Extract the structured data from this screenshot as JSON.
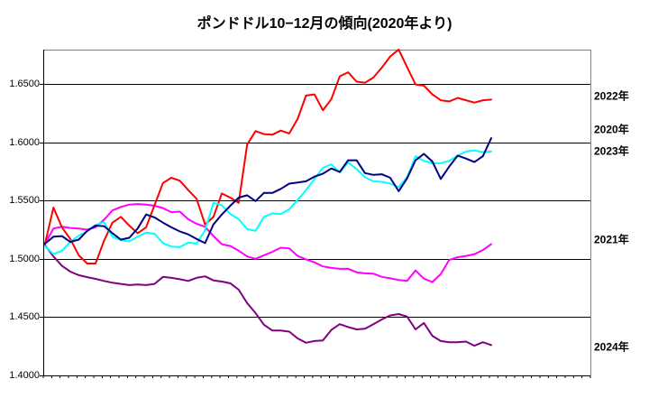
{
  "chart_data": {
    "type": "line",
    "title": "ポンドドル10−12月の傾向(2020年より)",
    "xlabel": "",
    "ylabel": "",
    "ylim": [
      1.4,
      1.68
    ],
    "grid": true,
    "legend_position": "right-of-plot",
    "y_ticks": [
      {
        "label": "1.6500",
        "value": 1.65
      },
      {
        "label": "1.6000",
        "value": 1.6
      },
      {
        "label": "1.5500",
        "value": 1.55
      },
      {
        "label": "1.5000",
        "value": 1.5
      },
      {
        "label": "1.4500",
        "value": 1.45
      },
      {
        "label": "1.4000",
        "value": 1.4
      }
    ],
    "x_axis": {
      "tick_intervals": 65,
      "labels_visible": false
    },
    "series": [
      {
        "name": "2022年",
        "color": "#FF0000",
        "z": 3,
        "label_value": 1.64,
        "values": [
          1.513,
          1.544,
          1.527,
          1.517,
          1.503,
          1.496,
          1.496,
          1.5155,
          1.531,
          1.536,
          1.5285,
          1.522,
          1.527,
          1.546,
          1.565,
          1.5695,
          1.567,
          1.559,
          1.5515,
          1.5295,
          1.536,
          1.556,
          1.5525,
          1.548,
          1.598,
          1.6095,
          1.607,
          1.6065,
          1.61,
          1.6075,
          1.62,
          1.64,
          1.641,
          1.6275,
          1.637,
          1.6565,
          1.66,
          1.652,
          1.651,
          1.6555,
          1.664,
          1.6735,
          1.6795,
          1.6645,
          1.6495,
          1.6485,
          1.641,
          1.636,
          1.635,
          1.638,
          1.636,
          1.634,
          1.636,
          1.6365
        ]
      },
      {
        "name": "2020年",
        "color": "#000080",
        "z": 5,
        "label_value": 1.6115,
        "values": [
          1.513,
          1.519,
          1.5195,
          1.5145,
          1.5165,
          1.524,
          1.5285,
          1.528,
          1.522,
          1.5165,
          1.518,
          1.526,
          1.538,
          1.5355,
          1.531,
          1.527,
          1.5235,
          1.521,
          1.517,
          1.5135,
          1.5295,
          1.538,
          1.5455,
          1.5525,
          1.5545,
          1.5495,
          1.5565,
          1.5565,
          1.56,
          1.5645,
          1.5655,
          1.5665,
          1.5705,
          1.573,
          1.5775,
          1.5745,
          1.5845,
          1.5845,
          1.5735,
          1.572,
          1.5725,
          1.5695,
          1.558,
          1.569,
          1.5845,
          1.59,
          1.5835,
          1.5685,
          1.579,
          1.5885,
          1.586,
          1.583,
          1.588,
          1.6035
        ]
      },
      {
        "name": "2023年",
        "color": "#00FFFF",
        "z": 4,
        "label_value": 1.5925,
        "values": [
          1.5108,
          1.504,
          1.507,
          1.5145,
          1.52,
          1.5235,
          1.529,
          1.5315,
          1.519,
          1.516,
          1.515,
          1.519,
          1.5225,
          1.5215,
          1.5135,
          1.5105,
          1.51,
          1.514,
          1.513,
          1.5245,
          1.548,
          1.546,
          1.5385,
          1.534,
          1.5255,
          1.524,
          1.536,
          1.539,
          1.5385,
          1.5425,
          1.5505,
          1.559,
          1.5685,
          1.578,
          1.581,
          1.574,
          1.5825,
          1.577,
          1.57,
          1.5665,
          1.566,
          1.5645,
          1.5615,
          1.57,
          1.588,
          1.584,
          1.582,
          1.582,
          1.584,
          1.5885,
          1.592,
          1.593,
          1.5915,
          1.592
        ]
      },
      {
        "name": "2021年",
        "color": "#FF00FF",
        "z": 1,
        "label_value": 1.5165,
        "values": [
          1.513,
          1.526,
          1.5275,
          1.5265,
          1.526,
          1.525,
          1.527,
          1.5335,
          1.5415,
          1.5445,
          1.5465,
          1.547,
          1.5465,
          1.5455,
          1.5435,
          1.54,
          1.5405,
          1.534,
          1.53,
          1.5275,
          1.5195,
          1.5125,
          1.511,
          1.507,
          1.502,
          1.5,
          1.503,
          1.506,
          1.5095,
          1.509,
          1.5025,
          1.4995,
          1.497,
          1.4935,
          1.4922,
          1.4914,
          1.4915,
          1.4885,
          1.4875,
          1.4872,
          1.4845,
          1.4833,
          1.4818,
          1.481,
          1.49,
          1.483,
          1.48,
          1.487,
          1.499,
          1.5014,
          1.5025,
          1.504,
          1.5075,
          1.5125
        ]
      },
      {
        "name": "2024年",
        "color": "#800080",
        "z": 2,
        "label_value": 1.4245,
        "values": [
          1.5115,
          1.502,
          1.494,
          1.489,
          1.486,
          1.4843,
          1.4828,
          1.481,
          1.4795,
          1.4785,
          1.4775,
          1.478,
          1.4775,
          1.4785,
          1.4845,
          1.4837,
          1.4825,
          1.481,
          1.4837,
          1.485,
          1.4815,
          1.4805,
          1.479,
          1.4735,
          1.462,
          1.4535,
          1.4435,
          1.4385,
          1.4385,
          1.4375,
          1.4317,
          1.428,
          1.4295,
          1.43,
          1.439,
          1.444,
          1.4415,
          1.4395,
          1.44,
          1.444,
          1.448,
          1.4515,
          1.4526,
          1.4505,
          1.4395,
          1.445,
          1.434,
          1.4295,
          1.4285,
          1.4285,
          1.429,
          1.4255,
          1.4285,
          1.426
        ]
      }
    ]
  }
}
